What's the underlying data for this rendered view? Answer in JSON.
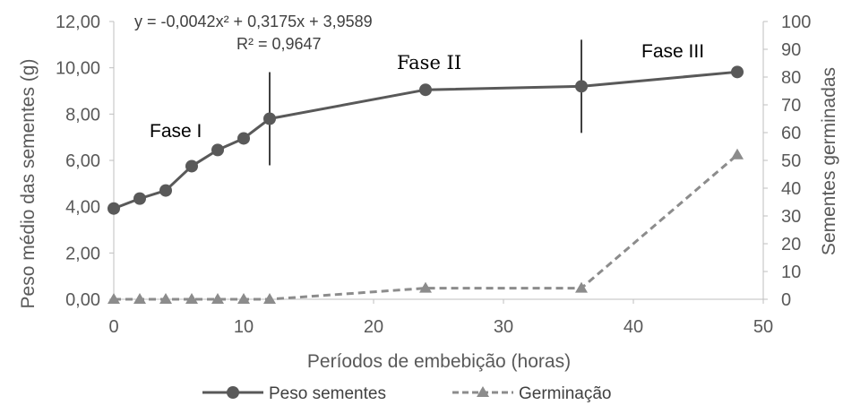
{
  "chart_data": {
    "type": "line",
    "xlabel": "Períodos de embebição (horas)",
    "ylabel": "Peso médio das sementes (g)",
    "y2label": "Sementes germinadas",
    "xlim": [
      0,
      50
    ],
    "ylim": [
      0,
      12
    ],
    "y2lim": [
      0,
      100
    ],
    "x_ticks": [
      "0",
      "10",
      "20",
      "30",
      "40",
      "50"
    ],
    "y_ticks": [
      "0,00",
      "2,00",
      "4,00",
      "6,00",
      "8,00",
      "10,00",
      "12,00"
    ],
    "y2_ticks": [
      "0",
      "10",
      "20",
      "30",
      "40",
      "50",
      "60",
      "70",
      "80",
      "90",
      "100"
    ],
    "grid": false,
    "legend_position": "bottom",
    "series": [
      {
        "name": "Peso sementes",
        "axis": "left",
        "style": "solid",
        "marker": "circle",
        "color": "#595959",
        "x": [
          0,
          2,
          4,
          6,
          8,
          10,
          12,
          24,
          36,
          48
        ],
        "values": [
          3.92,
          4.35,
          4.7,
          5.75,
          6.45,
          6.95,
          7.8,
          9.05,
          9.2,
          9.82
        ]
      },
      {
        "name": "Germinação",
        "axis": "right",
        "style": "dashed",
        "marker": "triangle",
        "color": "#8c8c8c",
        "x": [
          0,
          2,
          4,
          6,
          8,
          10,
          12,
          24,
          36,
          48
        ],
        "values": [
          0,
          0,
          0,
          0,
          0,
          0,
          0,
          4,
          4,
          52
        ]
      }
    ],
    "annotations": {
      "equation": "y = -0,0042x² + 0,3175x + 3,9589",
      "r_squared": "R² = 0,9647",
      "phases": [
        "Fase I",
        "Fase II",
        "Fase III"
      ]
    },
    "phase_dividers_x": [
      12,
      36
    ]
  }
}
